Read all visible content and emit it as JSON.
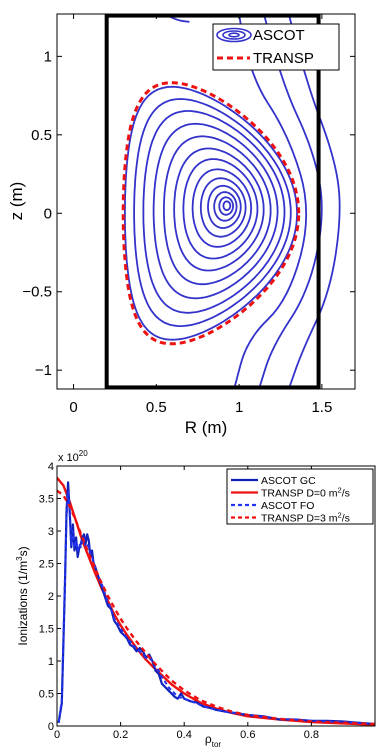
{
  "chart_data": [
    {
      "type": "line",
      "xlabel": "R (m)",
      "ylabel": "z (m)",
      "xlim": [
        -0.1,
        1.7
      ],
      "ylim": [
        -1.12,
        1.27
      ],
      "xticks": [
        "0",
        "0.5",
        "1",
        "1.5"
      ],
      "yticks": [
        "−1",
        "−0.5",
        "0",
        "0.5",
        "1"
      ],
      "xtick_values": [
        0,
        0.5,
        1,
        1.5
      ],
      "ytick_values": [
        -1,
        -0.5,
        0,
        0.5,
        1
      ],
      "legend": [
        "ASCOT",
        "TRANSP"
      ],
      "legend_position": "top-right",
      "colors": {
        "ascot": "#3333cc",
        "transp": "#ee1111",
        "vessel": "#000000"
      },
      "vessel": {
        "R": [
          0.2,
          1.48
        ],
        "z": [
          -1.11,
          1.26
        ]
      },
      "magnetic_axis": {
        "R": 0.93,
        "z": 0.05
      },
      "flux_surface_scales": [
        0.04,
        0.08,
        0.13,
        0.19,
        0.26,
        0.34,
        0.43,
        0.52,
        0.62,
        0.72,
        0.82,
        0.91,
        1.0
      ],
      "lcfs": {
        "R0": 0.83,
        "a": 0.52,
        "kappa": 1.55,
        "delta": 0.45
      },
      "transp_boundary": {
        "R0": 0.83,
        "a": 0.53,
        "kappa": 1.57,
        "delta": 0.45
      }
    },
    {
      "type": "line",
      "xlabel": "ρ",
      "xlabel_sub": "tor",
      "ylabel": "Ionizations (1/m",
      "ylabel_sup": "3",
      "ylabel_tail": "s)",
      "multiplier_base": "x 10",
      "multiplier_exp": "20",
      "xlim": [
        0,
        1
      ],
      "ylim": [
        0,
        4
      ],
      "xticks": [
        "0",
        "0.2",
        "0.4",
        "0.6",
        "0.8"
      ],
      "yticks": [
        "0",
        "0.5",
        "1",
        "1.5",
        "2",
        "2.5",
        "3",
        "3.5",
        "4"
      ],
      "xtick_values": [
        0,
        0.2,
        0.4,
        0.6,
        0.8
      ],
      "ytick_values": [
        0,
        0.5,
        1,
        1.5,
        2,
        2.5,
        3,
        3.5,
        4
      ],
      "legend_position": "top-right",
      "legend": [
        {
          "label": "ASCOT GC",
          "color": "#1122bb",
          "style": "solid"
        },
        {
          "label": "TRANSP D=0 m",
          "sup": "2",
          "tail": "/s",
          "color": "#ee1111",
          "style": "solid"
        },
        {
          "label": "ASCOT FO",
          "color": "#2233ee",
          "style": "dashed"
        },
        {
          "label": "TRANSP D=3 m",
          "sup": "2",
          "tail": "/s",
          "color": "#ee1111",
          "style": "dashed"
        }
      ],
      "series": [
        {
          "name": "ASCOT GC",
          "x": [
            0.005,
            0.015,
            0.025,
            0.03,
            0.035,
            0.04,
            0.045,
            0.05,
            0.055,
            0.06,
            0.065,
            0.07,
            0.075,
            0.08,
            0.085,
            0.09,
            0.095,
            0.1,
            0.105,
            0.11,
            0.115,
            0.12,
            0.13,
            0.14,
            0.15,
            0.16,
            0.17,
            0.18,
            0.19,
            0.2,
            0.21,
            0.22,
            0.23,
            0.24,
            0.25,
            0.26,
            0.27,
            0.28,
            0.29,
            0.3,
            0.31,
            0.32,
            0.33,
            0.34,
            0.35,
            0.36,
            0.37,
            0.38,
            0.39,
            0.4,
            0.42,
            0.44,
            0.46,
            0.48,
            0.5,
            0.53,
            0.56,
            0.6,
            0.65,
            0.7,
            0.75,
            0.8,
            0.85,
            0.9,
            0.95,
            1.0
          ],
          "y": [
            0.05,
            0.35,
            2.2,
            3.3,
            3.75,
            3.3,
            2.75,
            3.1,
            2.7,
            2.9,
            2.6,
            2.75,
            2.8,
            2.9,
            2.95,
            2.8,
            2.95,
            2.85,
            2.6,
            2.7,
            2.5,
            2.45,
            2.3,
            2.15,
            2.0,
            1.85,
            1.8,
            1.62,
            1.55,
            1.45,
            1.4,
            1.35,
            1.25,
            1.22,
            1.15,
            1.2,
            1.15,
            1.05,
            1.1,
            1.0,
            0.85,
            0.8,
            0.65,
            0.6,
            0.55,
            0.5,
            0.45,
            0.42,
            0.5,
            0.42,
            0.38,
            0.36,
            0.3,
            0.28,
            0.25,
            0.22,
            0.2,
            0.17,
            0.15,
            0.1,
            0.1,
            0.08,
            0.08,
            0.07,
            0.05,
            0.03
          ]
        },
        {
          "name": "TRANSP D=0 m2/s",
          "x": [
            0.0,
            0.02,
            0.04,
            0.06,
            0.08,
            0.1,
            0.12,
            0.14,
            0.16,
            0.18,
            0.2,
            0.22,
            0.25,
            0.28,
            0.3,
            0.33,
            0.36,
            0.4,
            0.45,
            0.5,
            0.55,
            0.6,
            0.7,
            0.8,
            0.9,
            1.0
          ],
          "y": [
            3.82,
            3.7,
            3.45,
            3.15,
            2.85,
            2.6,
            2.35,
            2.12,
            1.92,
            1.72,
            1.55,
            1.4,
            1.2,
            1.02,
            0.92,
            0.78,
            0.64,
            0.5,
            0.36,
            0.27,
            0.2,
            0.15,
            0.1,
            0.06,
            0.04,
            0.02
          ]
        },
        {
          "name": "ASCOT FO",
          "x": [
            0.005,
            0.015,
            0.025,
            0.03,
            0.035,
            0.04,
            0.045,
            0.05,
            0.055,
            0.06,
            0.065,
            0.07,
            0.075,
            0.08,
            0.085,
            0.09,
            0.095,
            0.1,
            0.105,
            0.11,
            0.12,
            0.13,
            0.14,
            0.15,
            0.16,
            0.17,
            0.18,
            0.19,
            0.2,
            0.21,
            0.22,
            0.23,
            0.24,
            0.25,
            0.26,
            0.27,
            0.28,
            0.29,
            0.3,
            0.31,
            0.32,
            0.33,
            0.34,
            0.35,
            0.36,
            0.37,
            0.38,
            0.4,
            0.42,
            0.44,
            0.46,
            0.48,
            0.5,
            0.53,
            0.56,
            0.6,
            0.65,
            0.7,
            0.75,
            0.8,
            0.85,
            0.9,
            0.95,
            1.0
          ],
          "y": [
            0.05,
            0.4,
            2.3,
            3.2,
            3.6,
            3.3,
            2.8,
            3.0,
            2.75,
            2.85,
            2.7,
            2.8,
            2.75,
            2.85,
            2.9,
            2.75,
            2.8,
            2.75,
            2.65,
            2.6,
            2.45,
            2.3,
            2.2,
            2.05,
            1.9,
            1.8,
            1.65,
            1.58,
            1.5,
            1.42,
            1.35,
            1.3,
            1.25,
            1.18,
            1.15,
            1.1,
            1.05,
            1.05,
            1.0,
            0.92,
            0.85,
            0.75,
            0.68,
            0.6,
            0.55,
            0.5,
            0.45,
            0.42,
            0.38,
            0.35,
            0.3,
            0.28,
            0.25,
            0.22,
            0.2,
            0.17,
            0.14,
            0.11,
            0.1,
            0.08,
            0.07,
            0.06,
            0.05,
            0.03
          ]
        },
        {
          "name": "TRANSP D=3 m2/s",
          "x": [
            0.0,
            0.02,
            0.04,
            0.06,
            0.08,
            0.1,
            0.12,
            0.14,
            0.16,
            0.18,
            0.2,
            0.22,
            0.25,
            0.28,
            0.3,
            0.33,
            0.36,
            0.4,
            0.45,
            0.5,
            0.55,
            0.6,
            0.7,
            0.8,
            0.9,
            1.0
          ],
          "y": [
            3.62,
            3.55,
            3.38,
            3.15,
            2.9,
            2.65,
            2.42,
            2.2,
            2.0,
            1.82,
            1.65,
            1.5,
            1.3,
            1.12,
            1.0,
            0.85,
            0.7,
            0.55,
            0.4,
            0.3,
            0.22,
            0.17,
            0.11,
            0.07,
            0.05,
            0.03
          ]
        }
      ]
    }
  ]
}
